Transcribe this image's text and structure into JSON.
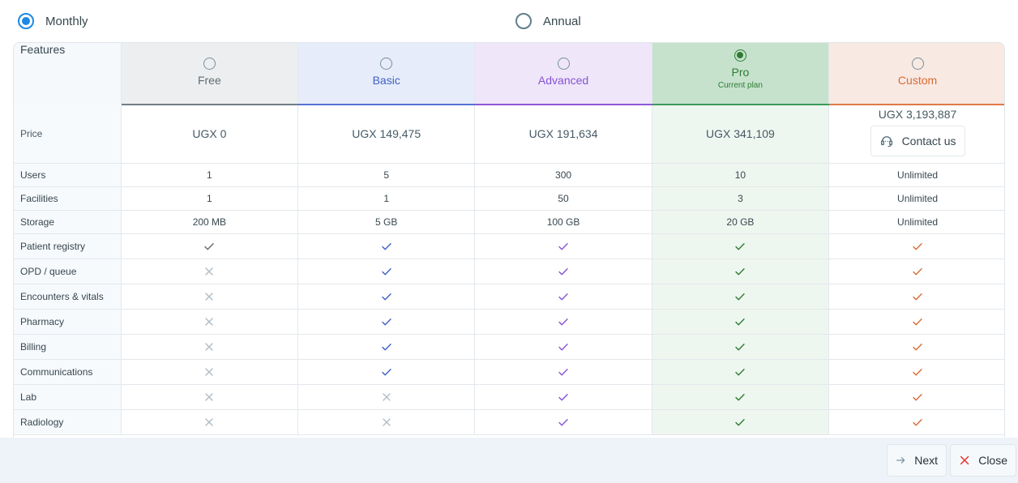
{
  "billing": {
    "options": [
      {
        "label": "Monthly",
        "selected": true
      },
      {
        "label": "Annual",
        "selected": false
      }
    ]
  },
  "table": {
    "features_header": "Features",
    "plans": [
      {
        "key": "free",
        "name": "Free",
        "selected": false,
        "color": "#5f6b73"
      },
      {
        "key": "basic",
        "name": "Basic",
        "selected": false,
        "color": "#3f5fc6"
      },
      {
        "key": "advanced",
        "name": "Advanced",
        "selected": false,
        "color": "#8653d6"
      },
      {
        "key": "pro",
        "name": "Pro",
        "selected": true,
        "subtitle": "Current plan",
        "color": "#2e7d32"
      },
      {
        "key": "custom",
        "name": "Custom",
        "selected": false,
        "color": "#d86a35"
      }
    ],
    "price": {
      "label": "Price",
      "values": [
        "UGX 0",
        "UGX 149,475",
        "UGX 191,634",
        "UGX 341,109",
        "UGX 3,193,887"
      ],
      "contact_label": "Contact us"
    },
    "value_rows": [
      {
        "label": "Users",
        "values": [
          "1",
          "5",
          "300",
          "10",
          "Unlimited"
        ]
      },
      {
        "label": "Facilities",
        "values": [
          "1",
          "1",
          "50",
          "3",
          "Unlimited"
        ]
      },
      {
        "label": "Storage",
        "values": [
          "200 MB",
          "5 GB",
          "100 GB",
          "20 GB",
          "Unlimited"
        ]
      }
    ],
    "feature_rows": [
      {
        "label": "Patient registry",
        "included": [
          true,
          true,
          true,
          true,
          true
        ]
      },
      {
        "label": "OPD / queue",
        "included": [
          false,
          true,
          true,
          true,
          true
        ]
      },
      {
        "label": "Encounters & vitals",
        "included": [
          false,
          true,
          true,
          true,
          true
        ]
      },
      {
        "label": "Pharmacy",
        "included": [
          false,
          true,
          true,
          true,
          true
        ]
      },
      {
        "label": "Billing",
        "included": [
          false,
          true,
          true,
          true,
          true
        ]
      },
      {
        "label": "Communications",
        "included": [
          false,
          true,
          true,
          true,
          true
        ]
      },
      {
        "label": "Lab",
        "included": [
          false,
          false,
          true,
          true,
          true
        ]
      },
      {
        "label": "Radiology",
        "included": [
          false,
          false,
          true,
          true,
          true
        ]
      }
    ],
    "mark_colors": {
      "check": [
        "#5f6b73",
        "#3f5fc6",
        "#8653d6",
        "#2e7d32",
        "#d86a35"
      ],
      "cross": "#b0bcc4"
    }
  },
  "footer": {
    "next_label": "Next",
    "close_label": "Close",
    "next_icon": "arrow-right-icon",
    "close_icon": "close-icon"
  }
}
